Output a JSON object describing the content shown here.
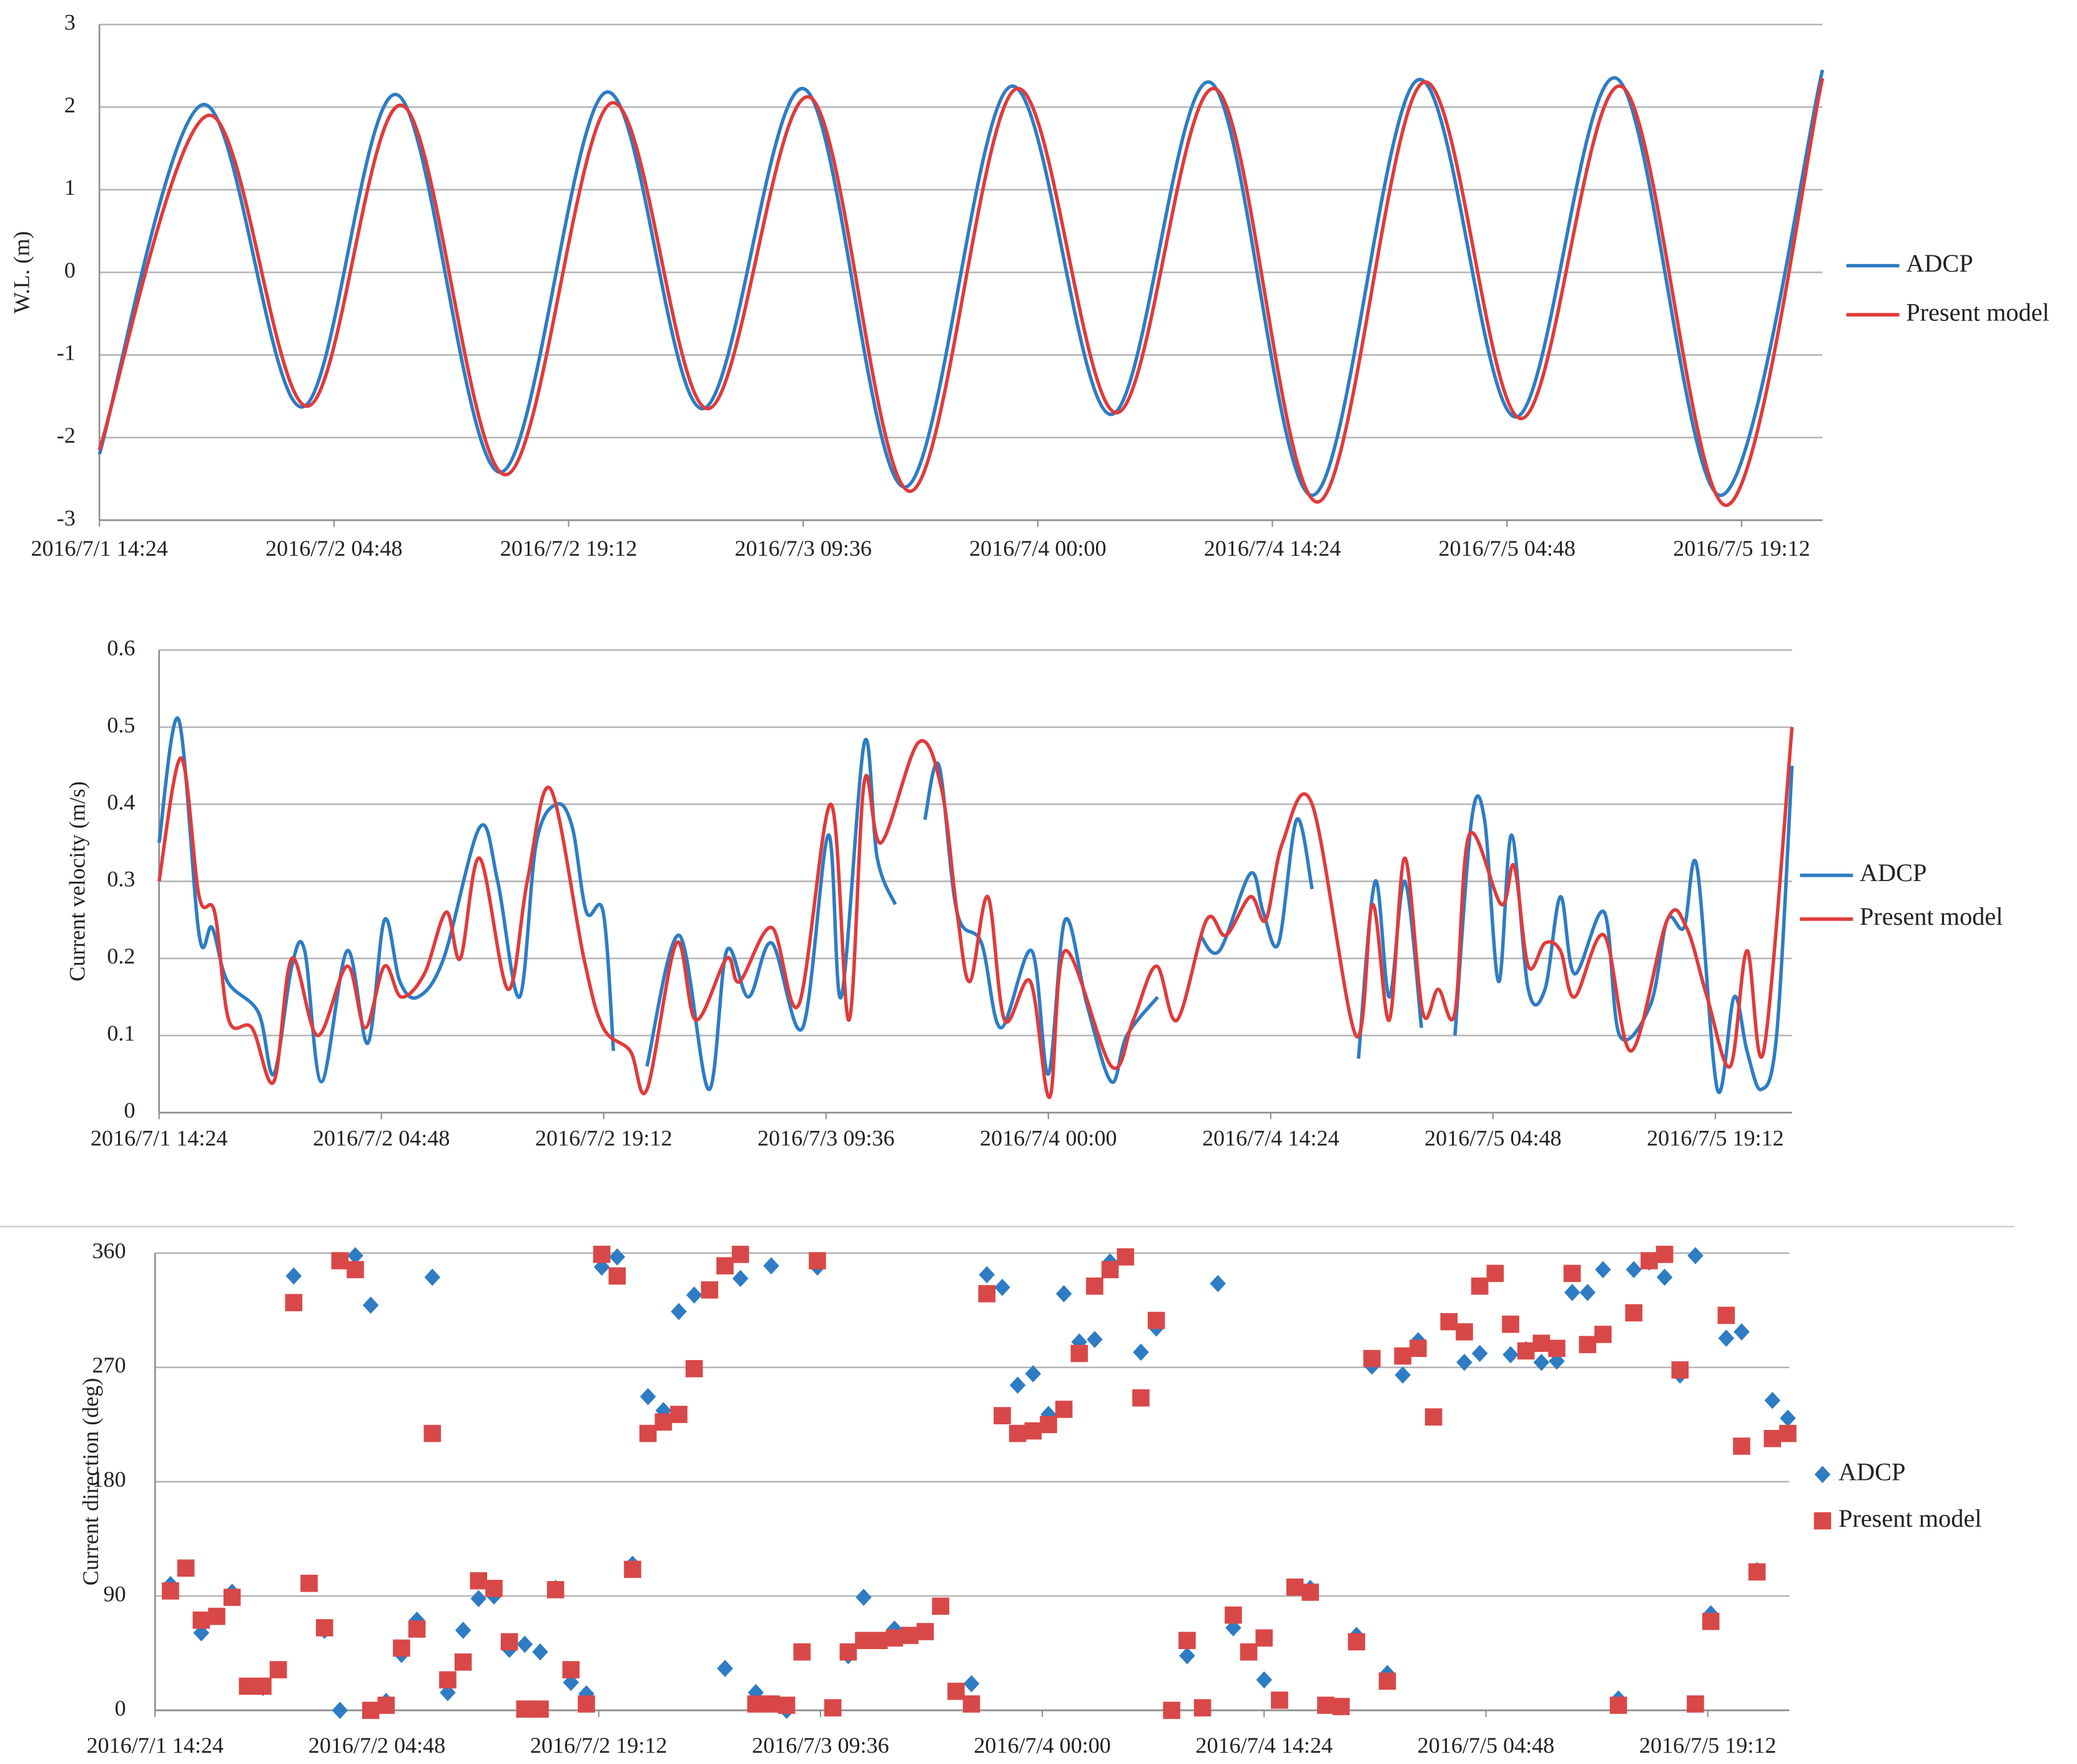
{
  "chart_data": [
    {
      "type": "line",
      "ylabel": "W.L. (m)",
      "legend": "right",
      "grid": true,
      "xlim": [
        "2016/7/1 14:24",
        "2016/7/6 00:10"
      ],
      "xticks": [
        "2016/7/1 14:24",
        "2016/7/2 04:48",
        "2016/7/2 19:12",
        "2016/7/3 09:36",
        "2016/7/4 00:00",
        "2016/7/4 14:24",
        "2016/7/5 04:48",
        "2016/7/5 19:12"
      ],
      "ylim": [
        -3,
        3
      ],
      "yticks": [
        -3,
        -2,
        -1,
        0,
        1,
        2,
        3
      ],
      "series": [
        {
          "name": "ADCP",
          "color": "#2e7cc4",
          "x": [
            "2016/7/1 14:24",
            "2016/7/1 20:45",
            "2016/7/2 02:50",
            "2016/7/2 08:40",
            "2016/7/2 15:00",
            "2016/7/2 21:30",
            "2016/7/3 03:25",
            "2016/7/3 09:40",
            "2016/7/3 15:50",
            "2016/7/3 22:20",
            "2016/7/4 04:30",
            "2016/7/4 10:35",
            "2016/7/4 16:50",
            "2016/7/4 23:20",
            "2016/7/5 05:20",
            "2016/7/5 11:30",
            "2016/7/5 17:55",
            "2016/7/6 00:10"
          ],
          "values": [
            -2.2,
            2.03,
            -1.63,
            2.15,
            -2.42,
            2.18,
            -1.65,
            2.22,
            -2.6,
            2.25,
            -1.72,
            2.3,
            -2.7,
            2.33,
            -1.75,
            2.35,
            -2.7,
            2.45
          ]
        },
        {
          "name": "Present model",
          "color": "#e03b3b",
          "x": [
            "2016/7/1 14:24",
            "2016/7/1 21:05",
            "2016/7/2 03:10",
            "2016/7/2 09:00",
            "2016/7/2 15:20",
            "2016/7/2 21:50",
            "2016/7/3 03:45",
            "2016/7/3 10:00",
            "2016/7/3 16:10",
            "2016/7/3 22:40",
            "2016/7/4 04:50",
            "2016/7/4 10:55",
            "2016/7/4 17:10",
            "2016/7/4 23:40",
            "2016/7/5 05:40",
            "2016/7/5 11:50",
            "2016/7/5 18:15",
            "2016/7/6 00:10"
          ],
          "values": [
            -2.15,
            1.9,
            -1.62,
            2.02,
            -2.45,
            2.05,
            -1.65,
            2.12,
            -2.65,
            2.22,
            -1.7,
            2.22,
            -2.78,
            2.3,
            -1.77,
            2.25,
            -2.82,
            2.35
          ]
        }
      ]
    },
    {
      "type": "line",
      "ylabel": "Current velocity (m/s)",
      "legend": "right",
      "grid": true,
      "xlim": [
        "2016/7/1 14:24",
        "2016/7/6 00:10"
      ],
      "xticks": [
        "2016/7/1 14:24",
        "2016/7/2 04:48",
        "2016/7/2 19:12",
        "2016/7/3 09:36",
        "2016/7/4 00:00",
        "2016/7/4 14:24",
        "2016/7/5 04:48",
        "2016/7/5 19:12"
      ],
      "ylim": [
        0,
        0.6
      ],
      "yticks": [
        0,
        0.1,
        0.2,
        0.3,
        0.4,
        0.5,
        0.6
      ],
      "series": [
        {
          "name": "ADCP",
          "color": "#2e7cc4",
          "x": [
            "2016/7/1 14:24",
            "2016/7/1 15:40",
            "2016/7/1 17:00",
            "2016/7/1 17:50",
            "2016/7/1 18:50",
            "2016/7/1 20:50",
            "2016/7/1 21:50",
            "2016/7/1 23:00",
            "2016/7/1 23:50",
            "2016/7/2 00:55",
            "2016/7/2 02:35",
            "2016/7/2 03:55",
            "2016/7/2 05:00",
            "2016/7/2 06:00",
            "2016/7/2 07:10",
            "2016/7/2 08:50",
            "2016/7/2 11:10",
            "2016/7/2 12:20",
            "2016/7/2 13:45",
            "2016/7/2 14:50",
            "2016/7/2 16:10",
            "2016/7/2 17:10",
            "2016/7/2 18:05",
            "2016/7/2 19:10",
            "2016/7/2 19:50",
            "2016/7/2 21:00",
            "2016/7/2 22:00",
            "2016/7/3 00:05",
            "2016/7/3 02:00",
            "2016/7/3 03:10",
            "2016/7/3 04:35",
            "2016/7/3 06:05",
            "2016/7/3 08:05",
            "2016/7/3 09:45",
            "2016/7/3 10:35",
            "2016/7/3 12:05",
            "2016/7/3 12:55",
            "2016/7/3 14:05",
            "2016/7/3 15:00",
            "2016/7/3 16:00",
            "2016/7/3 16:55",
            "2016/7/3 18:05",
            "2016/7/3 19:40",
            "2016/7/3 20:55",
            "2016/7/3 22:55",
            "2016/7/4 00:00",
            "2016/7/4 01:05",
            "2016/7/4 02:30",
            "2016/7/4 04:05",
            "2016/7/4 05:05",
            "2016/7/4 07:05",
            "2016/7/4 08:30",
            "2016/7/4 09:50",
            "2016/7/4 11:05",
            "2016/7/4 13:05",
            "2016/7/4 13:55",
            "2016/7/4 14:55",
            "2016/7/4 16:05",
            "2016/7/4 17:05",
            "2016/7/4 18:30",
            "2016/7/4 20:05",
            "2016/7/4 21:10",
            "2016/7/4 22:05",
            "2016/7/4 23:05",
            "2016/7/5 00:10",
            "2016/7/5 01:15",
            "2016/7/5 02:20",
            "2016/7/5 03:25",
            "2016/7/5 04:15",
            "2016/7/5 05:10",
            "2016/7/5 06:00",
            "2016/7/5 07:05",
            "2016/7/5 08:10",
            "2016/7/5 09:10",
            "2016/7/5 10:05",
            "2016/7/5 12:00",
            "2016/7/5 13:00",
            "2016/7/5 15:00",
            "2016/7/5 16:05",
            "2016/7/5 17:10",
            "2016/7/5 18:00",
            "2016/7/5 19:20",
            "2016/7/5 20:25",
            "2016/7/5 21:15",
            "2016/7/5 22:10",
            "2016/7/5 23:10",
            "2016/7/6 00:10"
          ],
          "values": [
            0.35,
            0.51,
            0.23,
            0.24,
            0.17,
            0.13,
            0.05,
            0.19,
            0.21,
            0.04,
            0.21,
            0.09,
            0.25,
            0.17,
            0.15,
            0.2,
            0.37,
            0.3,
            0.15,
            0.35,
            0.4,
            0.37,
            0.26,
            0.26,
            0.08,
            null,
            0.06,
            0.23,
            0.03,
            0.21,
            0.15,
            0.22,
            0.11,
            0.36,
            0.15,
            0.48,
            0.33,
            0.27,
            null,
            0.38,
            0.45,
            0.26,
            0.22,
            0.11,
            0.21,
            0.05,
            0.25,
            0.14,
            0.04,
            0.1,
            0.15,
            null,
            0.23,
            0.21,
            0.31,
            0.26,
            0.22,
            0.38,
            0.29,
            null,
            0.07,
            0.3,
            0.15,
            0.3,
            0.11,
            null,
            0.1,
            0.38,
            0.38,
            0.17,
            0.36,
            0.16,
            0.16,
            0.28,
            0.18,
            0.26,
            0.1,
            0.14,
            0.25,
            0.24,
            0.32,
            0.03,
            0.15,
            0.08,
            0.03,
            0.1,
            0.45
          ]
        },
        {
          "name": "Present model",
          "color": "#e03b3b",
          "x": [
            "2016/7/1 14:24",
            "2016/7/1 15:50",
            "2016/7/1 17:00",
            "2016/7/1 18:00",
            "2016/7/1 18:55",
            "2016/7/1 20:25",
            "2016/7/1 21:50",
            "2016/7/1 23:00",
            "2016/7/2 00:40",
            "2016/7/2 02:35",
            "2016/7/2 03:45",
            "2016/7/2 05:00",
            "2016/7/2 06:05",
            "2016/7/2 07:35",
            "2016/7/2 09:00",
            "2016/7/2 09:55",
            "2016/7/2 11:10",
            "2016/7/2 13:00",
            "2016/7/2 14:15",
            "2016/7/2 15:45",
            "2016/7/2 17:55",
            "2016/7/2 19:10",
            "2016/7/2 20:55",
            "2016/7/2 22:00",
            "2016/7/2 23:55",
            "2016/7/3 01:10",
            "2016/7/3 03:10",
            "2016/7/3 04:00",
            "2016/7/3 06:05",
            "2016/7/3 07:50",
            "2016/7/3 09:55",
            "2016/7/3 11:05",
            "2016/7/3 12:05",
            "2016/7/3 13:10",
            "2016/7/3 15:35",
            "2016/7/3 17:05",
            "2016/7/3 18:05",
            "2016/7/3 18:55",
            "2016/7/3 20:05",
            "2016/7/3 21:10",
            "2016/7/3 22:50",
            "2016/7/4 00:05",
            "2016/7/4 01:05",
            "2016/7/4 04:05",
            "2016/7/4 05:30",
            "2016/7/4 07:00",
            "2016/7/4 08:20",
            "2016/7/4 10:15",
            "2016/7/4 11:30",
            "2016/7/4 13:05",
            "2016/7/4 14:05",
            "2016/7/4 15:10",
            "2016/7/4 17:05",
            "2016/7/4 19:55",
            "2016/7/4 21:00",
            "2016/7/4 22:05",
            "2016/7/4 23:05",
            "2016/7/5 00:15",
            "2016/7/5 01:15",
            "2016/7/5 02:20",
            "2016/7/5 03:15",
            "2016/7/5 05:20",
            "2016/7/5 06:10",
            "2016/7/5 07:05",
            "2016/7/5 08:10",
            "2016/7/5 09:10",
            "2016/7/5 10:05",
            "2016/7/5 12:00",
            "2016/7/5 13:45",
            "2016/7/5 16:05",
            "2016/7/5 17:20",
            "2016/7/5 18:40",
            "2016/7/5 20:10",
            "2016/7/5 21:15",
            "2016/7/5 22:20",
            "2016/7/6 00:10"
          ],
          "values": [
            0.3,
            0.46,
            0.28,
            0.26,
            0.12,
            0.11,
            0.04,
            0.2,
            0.1,
            0.19,
            0.11,
            0.19,
            0.15,
            0.18,
            0.26,
            0.2,
            0.33,
            0.16,
            0.3,
            0.42,
            0.2,
            0.11,
            0.08,
            0.03,
            0.22,
            0.12,
            0.2,
            0.17,
            0.24,
            0.14,
            0.4,
            0.12,
            0.43,
            0.35,
            0.48,
            0.42,
            0.26,
            0.17,
            0.28,
            0.12,
            0.17,
            0.02,
            0.21,
            0.06,
            0.12,
            0.19,
            0.12,
            0.25,
            0.23,
            0.28,
            0.25,
            0.35,
            0.4,
            0.1,
            0.27,
            0.12,
            0.33,
            0.13,
            0.16,
            0.13,
            0.36,
            0.27,
            0.32,
            0.19,
            0.22,
            0.21,
            0.15,
            0.23,
            0.08,
            0.25,
            0.24,
            0.15,
            0.06,
            0.21,
            0.08,
            0.5
          ]
        }
      ]
    },
    {
      "type": "scatter",
      "ylabel": "Current direction (deg)",
      "legend": "right",
      "grid": true,
      "xlim": [
        "2016/7/1 14:24",
        "2016/7/6 00:30"
      ],
      "xticks": [
        "2016/7/1 14:24",
        "2016/7/2 04:48",
        "2016/7/2 19:12",
        "2016/7/3 09:36",
        "2016/7/4 00:00",
        "2016/7/4 14:24",
        "2016/7/5 04:48",
        "2016/7/5 19:12"
      ],
      "ylim": [
        0,
        360
      ],
      "yticks": [
        0,
        90,
        180,
        270,
        360
      ],
      "x": [
        "2016/7/1 15:24",
        "2016/7/1 16:24",
        "2016/7/1 17:24",
        "2016/7/1 18:24",
        "2016/7/1 19:24",
        "2016/7/1 20:24",
        "2016/7/1 21:24",
        "2016/7/1 22:24",
        "2016/7/1 23:24",
        "2016/7/2 00:24",
        "2016/7/2 01:24",
        "2016/7/2 02:24",
        "2016/7/2 03:24",
        "2016/7/2 04:24",
        "2016/7/2 05:24",
        "2016/7/2 06:24",
        "2016/7/2 07:24",
        "2016/7/2 08:24",
        "2016/7/2 09:24",
        "2016/7/2 10:24",
        "2016/7/2 11:24",
        "2016/7/2 12:24",
        "2016/7/2 13:24",
        "2016/7/2 14:24",
        "2016/7/2 15:24",
        "2016/7/2 16:24",
        "2016/7/2 17:24",
        "2016/7/2 18:24",
        "2016/7/2 19:24",
        "2016/7/2 20:24",
        "2016/7/2 21:24",
        "2016/7/2 22:24",
        "2016/7/2 23:24",
        "2016/7/3 00:24",
        "2016/7/3 01:24",
        "2016/7/3 02:24",
        "2016/7/3 03:24",
        "2016/7/3 04:24",
        "2016/7/3 05:24",
        "2016/7/3 06:24",
        "2016/7/3 07:24",
        "2016/7/3 08:24",
        "2016/7/3 09:24",
        "2016/7/3 10:24",
        "2016/7/3 11:24",
        "2016/7/3 12:24",
        "2016/7/3 13:24",
        "2016/7/3 14:24",
        "2016/7/3 15:24",
        "2016/7/3 16:24",
        "2016/7/3 17:24",
        "2016/7/3 18:24",
        "2016/7/3 19:24",
        "2016/7/3 20:24",
        "2016/7/3 21:24",
        "2016/7/3 22:24",
        "2016/7/3 23:24",
        "2016/7/4 00:24",
        "2016/7/4 01:24",
        "2016/7/4 02:24",
        "2016/7/4 03:24",
        "2016/7/4 04:24",
        "2016/7/4 05:24",
        "2016/7/4 06:24",
        "2016/7/4 07:24",
        "2016/7/4 08:24",
        "2016/7/4 09:24",
        "2016/7/4 10:24",
        "2016/7/4 11:24",
        "2016/7/4 12:24",
        "2016/7/4 13:24",
        "2016/7/4 14:24",
        "2016/7/4 15:24",
        "2016/7/4 16:24",
        "2016/7/4 17:24",
        "2016/7/4 18:24",
        "2016/7/4 19:24",
        "2016/7/4 20:24",
        "2016/7/4 21:24",
        "2016/7/4 22:24",
        "2016/7/4 23:24",
        "2016/7/5 00:24",
        "2016/7/5 01:24",
        "2016/7/5 02:24",
        "2016/7/5 03:24",
        "2016/7/5 04:24",
        "2016/7/5 05:24",
        "2016/7/5 06:24",
        "2016/7/5 07:24",
        "2016/7/5 08:24",
        "2016/7/5 09:24",
        "2016/7/5 10:24",
        "2016/7/5 11:24",
        "2016/7/5 12:24",
        "2016/7/5 13:24",
        "2016/7/5 14:24",
        "2016/7/5 15:24",
        "2016/7/5 16:24",
        "2016/7/5 17:24",
        "2016/7/5 18:24",
        "2016/7/5 19:24",
        "2016/7/5 20:24",
        "2016/7/5 21:24",
        "2016/7/5 22:24",
        "2016/7/5 23:24",
        "2016/7/6 00:24"
      ],
      "series": [
        {
          "name": "ADCP",
          "color": "#2e7cc4",
          "marker": "diamond",
          "values": [
            99,
            null,
            61,
            null,
            93,
            19,
            18,
            null,
            342,
            null,
            63,
            0,
            358,
            319,
            7,
            44,
            71,
            341,
            14,
            63,
            88,
            90,
            48,
            52,
            46,
            96,
            22,
            13,
            349,
            357,
            115,
            247,
            236,
            314,
            327,
            null,
            33,
            340,
            14,
            350,
            0,
            null,
            349,
            null,
            43,
            89,
            null,
            64,
            null,
            null,
            null,
            null,
            21,
            343,
            333,
            256,
            265,
            233,
            328,
            290,
            292,
            353,
            null,
            282,
            301,
            null,
            43,
            null,
            336,
            65,
            null,
            24,
            null,
            97,
            96,
            null,
            null,
            59,
            271,
            29,
            264,
            291,
            null,
            null,
            274,
            281,
            null,
            280,
            284,
            274,
            275,
            329,
            329,
            347,
            9,
            347,
            353,
            341,
            264,
            358,
            76,
            293,
            298,
            110,
            244,
            230
          ]
        },
        {
          "name": "Present model",
          "color": "#d94848",
          "marker": "square",
          "values": [
            94,
            112,
            71,
            74,
            89,
            19,
            19,
            32,
            321,
            100,
            65,
            354,
            347,
            0,
            4,
            49,
            64,
            218,
            24,
            38,
            102,
            96,
            54,
            1,
            1,
            95,
            32,
            5,
            359,
            342,
            111,
            218,
            227,
            233,
            269,
            331,
            350,
            359,
            5,
            5,
            4,
            46,
            354,
            2,
            46,
            55,
            55,
            57,
            59,
            62,
            82,
            15,
            5,
            328,
            232,
            218,
            220,
            225,
            237,
            281,
            334,
            347,
            357,
            246,
            307,
            0,
            55,
            2,
            null,
            75,
            46,
            57,
            8,
            97,
            93,
            4,
            3,
            54,
            277,
            23,
            279,
            285,
            231,
            306,
            298,
            334,
            344,
            304,
            283,
            289,
            285,
            344,
            288,
            296,
            4,
            313,
            354,
            359,
            268,
            5,
            70,
            311,
            208,
            109,
            214,
            218
          ]
        }
      ]
    }
  ]
}
